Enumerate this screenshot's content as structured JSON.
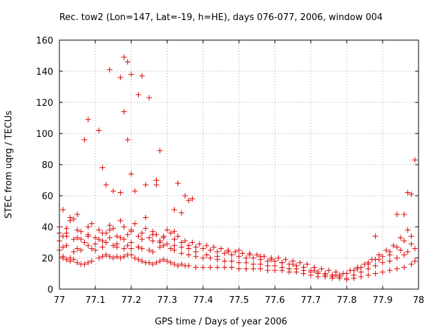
{
  "chart_data": {
    "type": "scatter",
    "title": "Rec. tow2 (Lon=147, Lat=-19, h=HE), days 076-077, 2006, window 004",
    "xlabel": "GPS time / Days of year 2006",
    "ylabel": "STEC from uqrg / TECUs",
    "xlim": [
      77,
      78
    ],
    "ylim": [
      0,
      160
    ],
    "xticks": [
      "77",
      "77.1",
      "77.2",
      "77.3",
      "77.4",
      "77.5",
      "77.6",
      "77.7",
      "77.8",
      "77.9",
      "78"
    ],
    "yticks": [
      "0",
      "20",
      "40",
      "60",
      "80",
      "100",
      "120",
      "140",
      "160"
    ],
    "grid": true,
    "marker": "+",
    "color": "#dd0000",
    "series": [
      {
        "x": [
          77.01,
          77.01,
          77.02,
          77.03,
          77.03,
          77.04,
          77.05,
          77.06,
          77.07,
          77.08,
          77.09,
          77.11,
          77.12,
          77.13,
          77.14,
          77.15,
          77.16,
          77.17,
          77.18,
          77.19,
          77.2,
          77.21,
          77.22,
          77.23,
          77.24,
          77.25,
          77.26,
          77.27,
          77.28,
          77.29,
          77.3,
          77.31,
          77.32,
          77.33,
          77.34,
          77.35,
          77.36,
          77.38,
          77.4,
          77.42,
          77.44,
          77.46,
          77.48,
          77.5,
          77.52,
          77.54,
          77.56,
          77.58,
          77.6,
          77.62,
          77.64,
          77.66,
          77.68,
          77.7,
          77.72,
          77.74,
          77.76,
          77.78,
          77.8,
          77.82,
          77.84,
          77.86,
          77.88,
          77.9,
          77.92,
          77.94,
          77.96,
          77.98,
          77.99
        ],
        "y": [
          20,
          21,
          19,
          18,
          20,
          19,
          17,
          16,
          16,
          17,
          18,
          20,
          21,
          22,
          21,
          20,
          21,
          20,
          21,
          22,
          22,
          20,
          19,
          18,
          17,
          17,
          16,
          17,
          18,
          19,
          18,
          17,
          16,
          15,
          16,
          15,
          15,
          14,
          14,
          14,
          14,
          14,
          14,
          13,
          13,
          13,
          13,
          12,
          12,
          12,
          11,
          11,
          10,
          9,
          8,
          8,
          7,
          7,
          6,
          7,
          8,
          9,
          10,
          11,
          12,
          13,
          14,
          16,
          18
        ]
      },
      {
        "x": [
          77.0,
          77.01,
          77.02,
          77.04,
          77.05,
          77.06,
          77.08,
          77.09,
          77.1,
          77.12,
          77.13,
          77.15,
          77.16,
          77.18,
          77.19,
          77.2,
          77.22,
          77.23,
          77.25,
          77.26,
          77.28,
          77.29,
          77.31,
          77.32,
          77.34,
          77.36,
          77.38,
          77.4,
          77.42,
          77.44,
          77.46,
          77.48,
          77.5,
          77.52,
          77.54,
          77.56,
          77.58,
          77.6,
          77.62,
          77.64,
          77.66,
          77.68,
          77.7,
          77.72,
          77.74,
          77.76,
          77.78,
          77.8,
          77.82,
          77.84,
          77.86,
          77.88,
          77.9,
          77.92,
          77.94,
          77.96,
          77.97,
          77.99
        ],
        "y": [
          25,
          27,
          28,
          24,
          26,
          25,
          28,
          26,
          25,
          27,
          30,
          28,
          27,
          26,
          28,
          30,
          27,
          26,
          25,
          24,
          27,
          28,
          26,
          25,
          23,
          22,
          21,
          20,
          20,
          19,
          18,
          18,
          17,
          17,
          16,
          16,
          15,
          15,
          14,
          13,
          13,
          12,
          11,
          10,
          9,
          8,
          8,
          7,
          9,
          11,
          13,
          15,
          17,
          18,
          20,
          22,
          24,
          26
        ]
      },
      {
        "x": [
          77.0,
          77.01,
          77.02,
          77.04,
          77.05,
          77.07,
          77.08,
          77.1,
          77.11,
          77.13,
          77.14,
          77.16,
          77.17,
          77.19,
          77.2,
          77.22,
          77.23,
          77.25,
          77.26,
          77.28,
          77.29,
          77.31,
          77.32,
          77.34,
          77.36,
          77.38,
          77.4,
          77.42,
          77.44,
          77.46,
          77.48,
          77.5,
          77.52,
          77.54,
          77.56,
          77.58,
          77.6,
          77.62,
          77.64,
          77.66,
          77.68,
          77.7,
          77.72,
          77.74,
          77.76,
          77.78,
          77.8,
          77.82,
          77.84,
          77.86,
          77.88,
          77.9,
          77.92,
          77.94,
          77.96,
          77.98
        ],
        "y": [
          31,
          34,
          36,
          32,
          33,
          30,
          35,
          33,
          32,
          36,
          38,
          34,
          33,
          35,
          37,
          34,
          32,
          33,
          31,
          30,
          34,
          36,
          32,
          30,
          28,
          27,
          26,
          25,
          24,
          23,
          22,
          21,
          20,
          20,
          19,
          18,
          18,
          17,
          16,
          15,
          14,
          12,
          11,
          10,
          9,
          9,
          10,
          12,
          14,
          17,
          19,
          21,
          24,
          27,
          31,
          34
        ]
      },
      {
        "x": [
          77.0,
          77.02,
          77.03,
          77.05,
          77.06,
          77.08,
          77.09,
          77.11,
          77.12,
          77.14,
          77.15,
          77.17,
          77.18,
          77.2,
          77.21,
          77.23,
          77.24,
          77.26,
          77.27,
          77.29,
          77.3,
          77.32,
          77.33,
          77.35,
          77.37,
          77.39,
          77.41,
          77.43,
          77.45,
          77.47,
          77.49,
          77.51,
          77.53,
          77.55,
          77.57,
          77.59,
          77.61,
          77.63,
          77.65,
          77.67,
          77.69,
          77.71,
          77.73,
          77.75,
          77.77,
          77.79,
          77.81,
          77.83,
          77.85,
          77.87,
          77.89,
          77.91,
          77.93,
          77.95,
          77.97
        ],
        "y": [
          40,
          39,
          44,
          38,
          37,
          40,
          42,
          38,
          36,
          41,
          39,
          44,
          40,
          38,
          42,
          36,
          39,
          37,
          35,
          33,
          38,
          37,
          34,
          31,
          30,
          29,
          28,
          27,
          26,
          25,
          24,
          23,
          22,
          22,
          21,
          20,
          20,
          19,
          18,
          17,
          16,
          14,
          13,
          12,
          11,
          10,
          12,
          14,
          16,
          19,
          22,
          25,
          28,
          33,
          38
        ]
      },
      {
        "x": [
          77.01,
          77.03,
          77.05,
          77.07,
          77.08,
          77.11,
          77.12,
          77.13,
          77.14,
          77.15,
          77.17,
          77.17,
          77.18,
          77.18,
          77.19,
          77.19,
          77.2,
          77.2,
          77.21,
          77.22,
          77.23,
          77.24,
          77.25,
          77.27,
          77.27,
          77.28,
          77.32,
          77.33,
          77.34,
          77.35,
          77.36,
          77.37,
          77.88,
          77.94,
          77.96,
          77.97,
          77.98,
          77.99
        ],
        "y": [
          51,
          46,
          48,
          96,
          109,
          102,
          78,
          67,
          141,
          63,
          136,
          62,
          149,
          114,
          146,
          96,
          138,
          74,
          63,
          125,
          137,
          67,
          123,
          70,
          67,
          89,
          51,
          68,
          49,
          60,
          57,
          58,
          34,
          48,
          48,
          62,
          61,
          83
        ]
      },
      {
        "x": [
          77.0,
          77.02,
          77.04,
          77.06,
          77.08,
          77.1,
          77.12,
          77.14,
          77.16,
          77.18,
          77.2,
          77.22,
          77.24,
          77.26,
          77.28,
          77.3,
          77.32,
          77.34,
          77.36,
          77.38,
          77.41,
          77.44,
          77.47,
          77.5,
          77.53,
          77.56,
          77.59,
          77.62,
          77.65,
          77.68,
          77.71,
          77.74,
          77.77,
          77.8,
          77.83,
          77.86,
          77.89,
          77.92,
          77.95,
          77.98
        ],
        "y": [
          36,
          34,
          45,
          32,
          34,
          29,
          31,
          33,
          29,
          32,
          26,
          27,
          46,
          35,
          31,
          29,
          28,
          27,
          26,
          24,
          22,
          21,
          24,
          25,
          23,
          21,
          19,
          17,
          16,
          14,
          12,
          10,
          9,
          10,
          13,
          16,
          19,
          22,
          25,
          29
        ]
      }
    ]
  }
}
